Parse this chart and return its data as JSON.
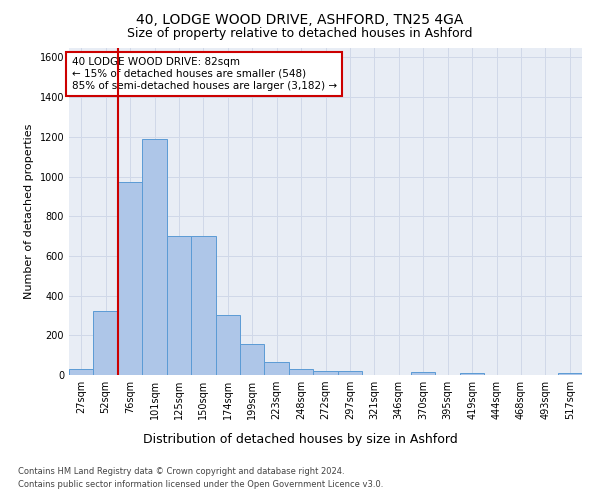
{
  "title_line1": "40, LODGE WOOD DRIVE, ASHFORD, TN25 4GA",
  "title_line2": "Size of property relative to detached houses in Ashford",
  "xlabel": "Distribution of detached houses by size in Ashford",
  "ylabel": "Number of detached properties",
  "footer_line1": "Contains HM Land Registry data © Crown copyright and database right 2024.",
  "footer_line2": "Contains public sector information licensed under the Open Government Licence v3.0.",
  "bin_labels": [
    "27sqm",
    "52sqm",
    "76sqm",
    "101sqm",
    "125sqm",
    "150sqm",
    "174sqm",
    "199sqm",
    "223sqm",
    "248sqm",
    "272sqm",
    "297sqm",
    "321sqm",
    "346sqm",
    "370sqm",
    "395sqm",
    "419sqm",
    "444sqm",
    "468sqm",
    "493sqm",
    "517sqm"
  ],
  "bar_values": [
    30,
    320,
    970,
    1190,
    700,
    700,
    300,
    155,
    65,
    30,
    20,
    20,
    0,
    0,
    15,
    0,
    12,
    0,
    0,
    0,
    12
  ],
  "bar_color": "#aec6e8",
  "bar_edge_color": "#5b9bd5",
  "grid_color": "#d0d8e8",
  "red_line_bin_index": 2,
  "red_line_color": "#cc0000",
  "annotation_text": "40 LODGE WOOD DRIVE: 82sqm\n← 15% of detached houses are smaller (548)\n85% of semi-detached houses are larger (3,182) →",
  "annotation_box_color": "#ffffff",
  "annotation_box_edge": "#cc0000",
  "ylim": [
    0,
    1650
  ],
  "yticks": [
    0,
    200,
    400,
    600,
    800,
    1000,
    1200,
    1400,
    1600
  ],
  "background_color": "#e8edf5",
  "fig_background": "#ffffff",
  "title1_fontsize": 10,
  "title2_fontsize": 9,
  "ylabel_fontsize": 8,
  "xlabel_fontsize": 9,
  "tick_fontsize": 7,
  "footer_fontsize": 6,
  "annotation_fontsize": 7.5
}
